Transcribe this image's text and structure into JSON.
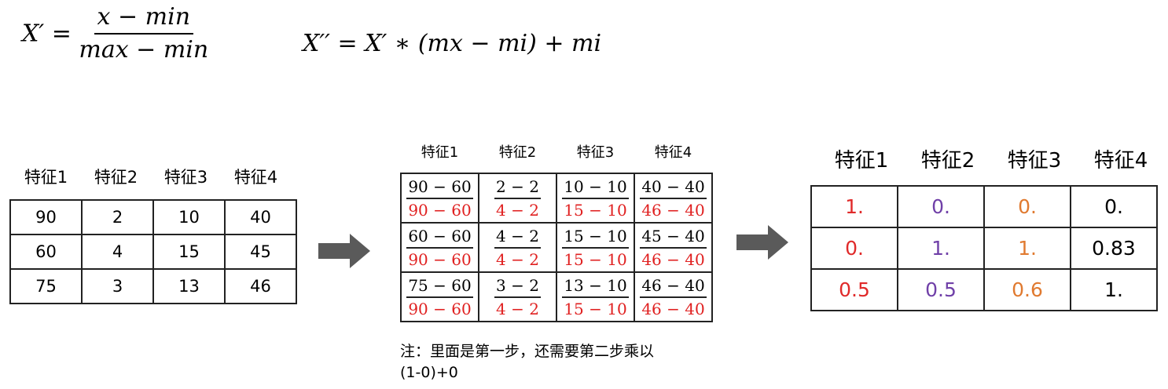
{
  "formulas": {
    "normalize": {
      "lhs": "X′ =",
      "numerator": "x − min",
      "denominator": "max − min"
    },
    "scale": "X′′ = X′ ∗ (mx − mi) + mi"
  },
  "original_table": {
    "headers": [
      "特征1",
      "特征2",
      "特征3",
      "特征4"
    ],
    "rows": [
      [
        "90",
        "2",
        "10",
        "40"
      ],
      [
        "60",
        "4",
        "15",
        "45"
      ],
      [
        "75",
        "3",
        "13",
        "46"
      ]
    ]
  },
  "step_table": {
    "headers": [
      "特征1",
      "特征2",
      "特征3",
      "特征4"
    ],
    "rows": [
      [
        {
          "num": "90 − 60",
          "den": "90 − 60"
        },
        {
          "num": "2 − 2",
          "den": "4 − 2"
        },
        {
          "num": "10 − 10",
          "den": "15 − 10"
        },
        {
          "num": "40 − 40",
          "den": "46 − 40"
        }
      ],
      [
        {
          "num": "60 − 60",
          "den": "90 − 60"
        },
        {
          "num": "4 − 2",
          "den": "4 − 2"
        },
        {
          "num": "15 − 10",
          "den": "15 − 10"
        },
        {
          "num": "45 − 40",
          "den": "46 − 40"
        }
      ],
      [
        {
          "num": "75 − 60",
          "den": "90 − 60"
        },
        {
          "num": "3 − 2",
          "den": "4 − 2"
        },
        {
          "num": "13 − 10",
          "den": "15 − 10"
        },
        {
          "num": "46 − 40",
          "den": "46 − 40"
        }
      ]
    ],
    "note_line1": "注：里面是第一步，还需要第二步乘以",
    "note_line2": "(1-0)+0"
  },
  "result_table": {
    "headers": [
      "特征1",
      "特征2",
      "特征3",
      "特征4"
    ],
    "column_colors": [
      "#e02a2a",
      "#7040a8",
      "#e07a30",
      "#000000"
    ],
    "rows": [
      [
        "1.",
        "0.",
        "0.",
        "0."
      ],
      [
        "0.",
        "1.",
        "1.",
        "0.83"
      ],
      [
        "0.5",
        "0.5",
        "0.6",
        "1."
      ]
    ]
  },
  "colors": {
    "denominator": "#e02020",
    "arrow": "#5a5a5a"
  }
}
